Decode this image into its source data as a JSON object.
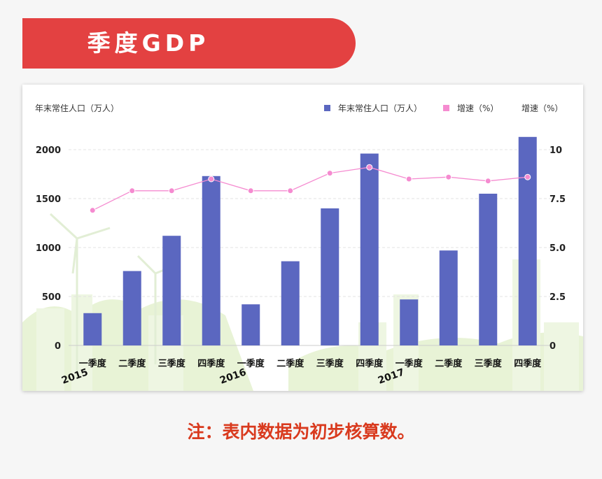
{
  "header": {
    "title": "季度GDP"
  },
  "footer": {
    "note": "注：表内数据为初步核算数。"
  },
  "colors": {
    "bar": "#5b67c0",
    "line": "#f58bd0",
    "banner": "#e34141",
    "note": "#d93a1e"
  },
  "chart_data": {
    "type": "bar",
    "ylabel_left": "年末常住人口（万人）",
    "ylabel_right": "增速（%）",
    "categories": [
      "一季度",
      "二季度",
      "三季度",
      "四季度",
      "一季度",
      "二季度",
      "三季度",
      "四季度",
      "一季度",
      "二季度",
      "三季度",
      "四季度"
    ],
    "year_labels": [
      {
        "label": "2015",
        "start_index": 0
      },
      {
        "label": "2016",
        "start_index": 4
      },
      {
        "label": "2017",
        "start_index": 8
      }
    ],
    "left_ylim": [
      0,
      2000
    ],
    "left_ticks": [
      "0",
      "500",
      "1000",
      "1500",
      "2000"
    ],
    "right_ylim": [
      0,
      10
    ],
    "right_ticks": [
      "0",
      "2.5",
      "5.0",
      "7.5",
      "10"
    ],
    "series": [
      {
        "name": "年末常住人口（万人）",
        "type": "bar",
        "axis": "left",
        "values": [
          330,
          760,
          1120,
          1730,
          420,
          860,
          1400,
          1960,
          470,
          970,
          1550,
          2130
        ]
      },
      {
        "name": "增速（%）",
        "type": "line",
        "axis": "right",
        "values": [
          6.9,
          7.9,
          7.9,
          8.5,
          7.9,
          7.9,
          8.8,
          9.1,
          8.5,
          8.6,
          8.4,
          8.6
        ]
      }
    ],
    "legend_position": "top-right",
    "grid": true
  }
}
